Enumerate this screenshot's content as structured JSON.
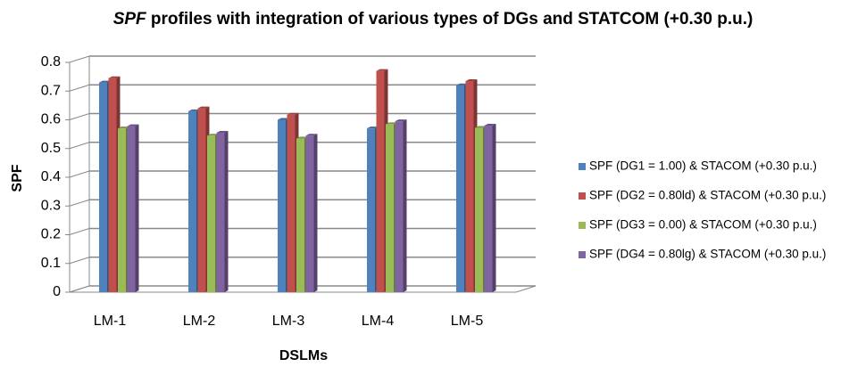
{
  "chart_data": {
    "type": "bar",
    "title": "SPF profiles with integration of various types of DGs and STATCOM (+0.30 p.u.)",
    "x_label": "DSLMs",
    "y_label": "SPF",
    "categories": [
      "LM-1",
      "LM-2",
      "LM-3",
      "LM-4",
      "LM-5"
    ],
    "series": [
      {
        "name": "SPF (DG1 = 1.00) & STACOM (+0.30 p.u.)",
        "color": "#4f81bd",
        "values": [
          0.73,
          0.63,
          0.6,
          0.57,
          0.72
        ]
      },
      {
        "name": "SPF (DG2 = 0.80ld) & STACOM (+0.30 p.u.)",
        "color": "#c0504d",
        "values": [
          0.745,
          0.64,
          0.618,
          0.77,
          0.735
        ]
      },
      {
        "name": "SPF (DG3 = 0.00) & STACOM (+0.30 p.u.)",
        "color": "#9bbb59",
        "values": [
          0.57,
          0.545,
          0.535,
          0.585,
          0.572
        ]
      },
      {
        "name": "SPF (DG4 = 0.80lg) & STACOM (+0.30 p.u.)",
        "color": "#8064a2",
        "values": [
          0.578,
          0.555,
          0.545,
          0.595,
          0.58
        ]
      }
    ],
    "ylim": [
      0,
      0.8
    ],
    "yticks": [
      0,
      0.1,
      0.2,
      0.3,
      0.4,
      0.5,
      0.6,
      0.7,
      0.8
    ],
    "grid": true,
    "legend": "right"
  }
}
